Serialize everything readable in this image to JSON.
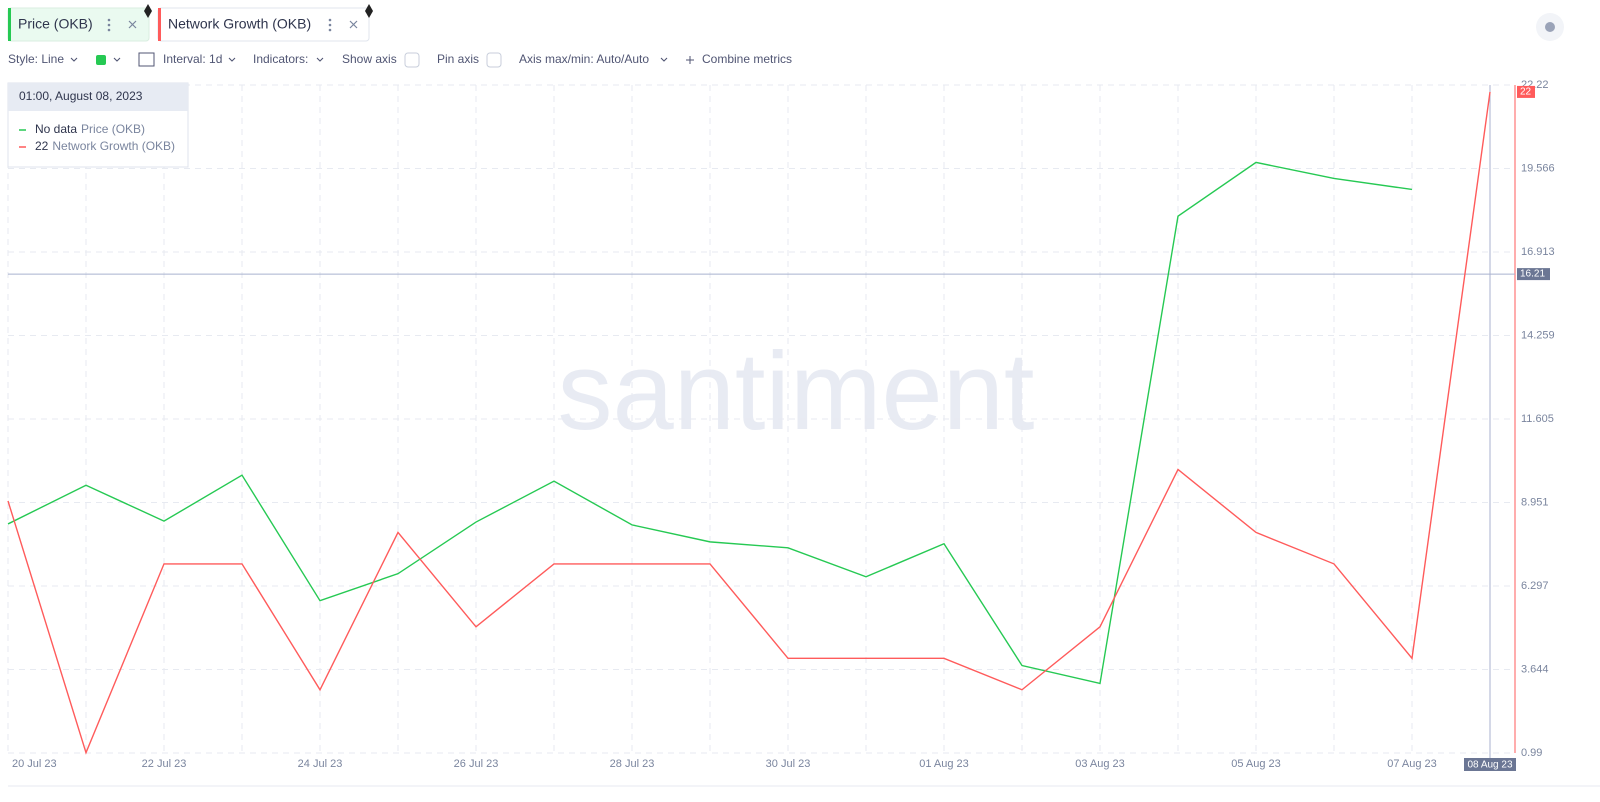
{
  "toolbar": {
    "style": "Style: Line",
    "interval": "Interval: 1d",
    "indicators": "Indicators:",
    "show_axis": "Show axis",
    "pin_axis": "Pin axis",
    "axis_minmax": "Axis max/min: Auto/Auto",
    "combine": "Combine metrics"
  },
  "tooltip": {
    "date": "01:00, August 08, 2023",
    "no_data": "No data"
  },
  "watermark": "santiment",
  "chart_data": {
    "type": "line",
    "categories": [
      "20 Jul 23",
      null,
      "22 Jul 23",
      null,
      "24 Jul 23",
      null,
      "26 Jul 23",
      null,
      "28 Jul 23",
      null,
      "30 Jul 23",
      null,
      "01 Aug 23",
      null,
      "03 Aug 23",
      null,
      "05 Aug 23",
      null,
      "07 Aug 23",
      "08 Aug 23"
    ],
    "series": [
      {
        "name": "Price (OKB)",
        "color": "#26c953",
        "values": [
          8.27,
          9.5,
          8.36,
          9.82,
          5.83,
          6.69,
          8.33,
          9.63,
          8.24,
          7.7,
          7.51,
          6.59,
          7.64,
          3.77,
          3.2,
          18.05,
          19.76,
          19.25,
          18.9,
          null
        ]
      },
      {
        "name": "Network Growth (OKB)",
        "color": "#ff5b5b",
        "values": [
          9,
          1,
          7,
          7,
          3,
          8,
          5,
          7,
          7,
          7,
          4,
          4,
          4,
          3,
          5,
          10,
          8,
          7,
          4,
          22
        ]
      }
    ],
    "ylim": [
      0.99,
      22.22
    ],
    "yticks": [
      0.99,
      3.644,
      6.297,
      8.951,
      11.605,
      14.259,
      16.913,
      19.566,
      22.22
    ],
    "grid": true,
    "crosshair": {
      "y": 16.21,
      "index": 19
    }
  }
}
